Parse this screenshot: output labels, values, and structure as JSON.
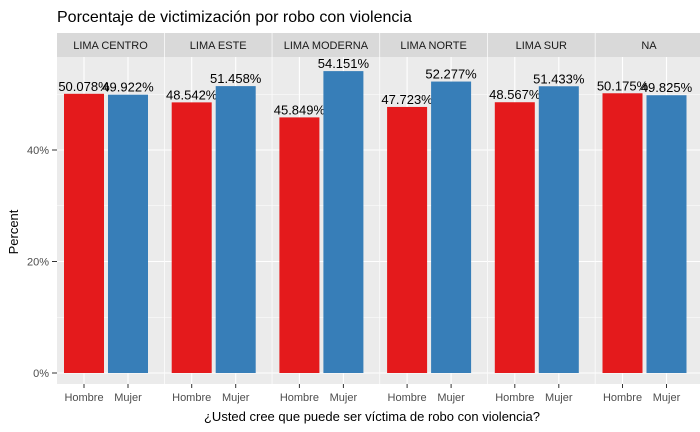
{
  "chart_data": {
    "type": "bar",
    "title": "Porcentaje de victimización por robo con violencia",
    "xlabel": "¿Usted cree que puede ser víctima de robo con violencia?",
    "ylabel": "Percent",
    "ylim": [
      0,
      55
    ],
    "yticks": [
      0,
      20,
      40
    ],
    "ytick_labels": [
      "0%",
      "20%",
      "40%"
    ],
    "grid": true,
    "legend": "none",
    "categories": [
      "Hombre",
      "Mujer"
    ],
    "colors": {
      "Hombre": "#e41a1c",
      "Mujer": "#377eb8"
    },
    "facets": [
      {
        "name": "LIMA CENTRO",
        "values": [
          50.078,
          49.922
        ],
        "labels": [
          "50.078%",
          "49.922%"
        ]
      },
      {
        "name": "LIMA ESTE",
        "values": [
          48.542,
          51.458
        ],
        "labels": [
          "48.542%",
          "51.458%"
        ]
      },
      {
        "name": "LIMA MODERNA",
        "values": [
          45.849,
          54.151
        ],
        "labels": [
          "45.849%",
          "54.151%"
        ]
      },
      {
        "name": "LIMA NORTE",
        "values": [
          47.723,
          52.277
        ],
        "labels": [
          "47.723%",
          "52.277%"
        ]
      },
      {
        "name": "LIMA SUR",
        "values": [
          48.567,
          51.433
        ],
        "labels": [
          "48.567%",
          "51.433%"
        ]
      },
      {
        "name": "NA",
        "values": [
          50.175,
          49.825
        ],
        "labels": [
          "50.175%",
          "49.825%"
        ]
      }
    ]
  }
}
